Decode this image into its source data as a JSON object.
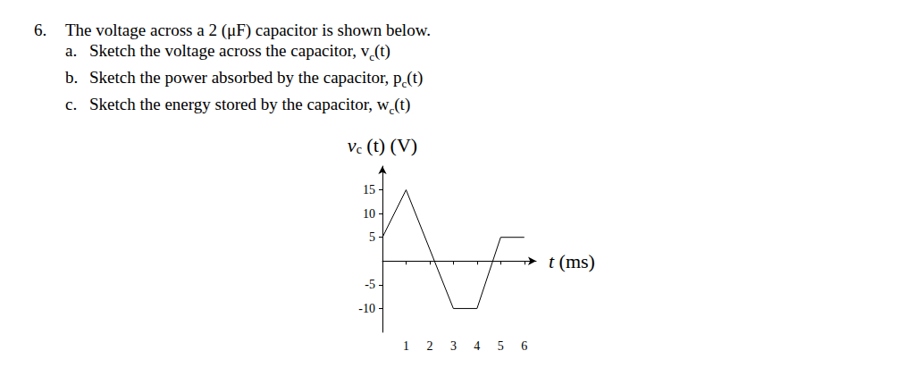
{
  "problem": {
    "number": "6.",
    "statement": "The voltage across a 2 (μF) capacitor is shown below.",
    "items": [
      {
        "label": "a.",
        "text": "Sketch the voltage across the capacitor, ",
        "var": "v",
        "sub": "c",
        "after": "(t)"
      },
      {
        "label": "b.",
        "text": "Sketch the power absorbed by the capacitor, ",
        "var": "p",
        "sub": "c",
        "after": "(t)"
      },
      {
        "label": "c.",
        "text": "Sketch the energy stored by the capacitor, ",
        "var": "w",
        "sub": "c",
        "after": "(t)"
      }
    ]
  },
  "chart_data": {
    "type": "line",
    "ylabel": {
      "main": "v",
      "sub": "c",
      "rest": " (t) (V)"
    },
    "xlabel": {
      "main": "t",
      "rest": " (ms)"
    },
    "x": [
      0,
      1,
      3,
      4,
      5,
      6
    ],
    "values": [
      5,
      15,
      -10,
      -10,
      5,
      5
    ],
    "color": "#000000",
    "xlim": [
      0,
      6.5
    ],
    "xticks": [
      1,
      2,
      3,
      4,
      5,
      6
    ],
    "ylim": [
      -15,
      20
    ],
    "yticks": [
      -10,
      -5,
      5,
      10,
      15
    ],
    "grid": false
  }
}
